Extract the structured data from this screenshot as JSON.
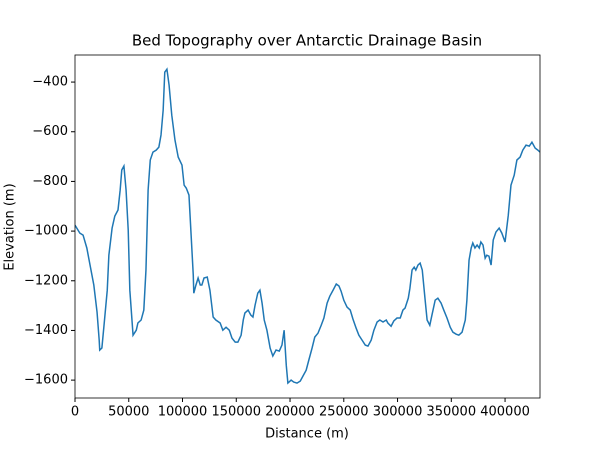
{
  "chart_data": {
    "type": "line",
    "title": "Bed Topography over Antarctic Drainage Basin",
    "x_label": "Distance (m)",
    "y_label": "Elevation (m)",
    "xlim": [
      0,
      432500
    ],
    "ylim": [
      -1672,
      -291
    ],
    "xticks": [
      0,
      50000,
      100000,
      150000,
      200000,
      250000,
      300000,
      350000,
      400000
    ],
    "yticks": [
      {
        "value": -1600,
        "label": "−1600"
      },
      {
        "value": -1400,
        "label": "−1400"
      },
      {
        "value": -1200,
        "label": "−1200"
      },
      {
        "value": -1000,
        "label": "−1000"
      },
      {
        "value": -800,
        "label": "−800"
      },
      {
        "value": -600,
        "label": "−600"
      },
      {
        "value": -400,
        "label": "−400"
      }
    ],
    "color": "#1f77b4",
    "x": [
      0,
      4500,
      7500,
      11000,
      14000,
      17500,
      20500,
      22500,
      23000,
      25000,
      27000,
      30000,
      31500,
      34500,
      37000,
      40000,
      42000,
      43500,
      45500,
      47500,
      49500,
      51000,
      54000,
      57000,
      58500,
      61500,
      64000,
      66000,
      68000,
      70000,
      72500,
      75500,
      78000,
      80000,
      82000,
      83500,
      85500,
      87500,
      90000,
      93000,
      96000,
      99500,
      101500,
      103500,
      106000,
      108000,
      110000,
      110500,
      112500,
      114500,
      116500,
      118000,
      120000,
      123000,
      125500,
      128500,
      131000,
      135000,
      137500,
      140500,
      143500,
      146000,
      149000,
      151500,
      154500,
      156500,
      158000,
      161000,
      163500,
      165500,
      167500,
      170000,
      172000,
      174000,
      176000,
      178500,
      181500,
      184000,
      187000,
      190000,
      192500,
      194500,
      196500,
      198000,
      201000,
      203500,
      206500,
      209500,
      212000,
      215000,
      217500,
      220500,
      223000,
      226000,
      229000,
      231500,
      234500,
      237000,
      240000,
      243000,
      245500,
      247500,
      250000,
      253000,
      256000,
      258500,
      261500,
      264000,
      267000,
      270000,
      272500,
      275500,
      278000,
      281000,
      283500,
      286500,
      289500,
      291000,
      294000,
      296500,
      299500,
      302500,
      305000,
      307000,
      310000,
      311500,
      313500,
      315500,
      317000,
      319000,
      321000,
      323000,
      325500,
      327500,
      330000,
      332000,
      335000,
      337500,
      340500,
      343000,
      346000,
      349000,
      351500,
      354500,
      357000,
      360000,
      363000,
      364500,
      366500,
      368500,
      370000,
      372000,
      374000,
      376000,
      377500,
      379500,
      381500,
      383000,
      385000,
      387000,
      389000,
      391500,
      394500,
      397000,
      400000,
      403000,
      405500,
      408500,
      411000,
      414000,
      416500,
      419500,
      422500,
      425000,
      428000,
      430500,
      432500
    ],
    "values": [
      -976,
      -1008,
      -1016,
      -1068,
      -1137,
      -1217,
      -1326,
      -1439,
      -1479,
      -1471,
      -1379,
      -1238,
      -1097,
      -988,
      -940,
      -915,
      -835,
      -754,
      -738,
      -835,
      -996,
      -1238,
      -1419,
      -1399,
      -1370,
      -1358,
      -1318,
      -1157,
      -835,
      -714,
      -682,
      -674,
      -662,
      -613,
      -513,
      -360,
      -348,
      -412,
      -533,
      -634,
      -702,
      -734,
      -815,
      -827,
      -855,
      -1016,
      -1177,
      -1250,
      -1217,
      -1189,
      -1217,
      -1217,
      -1189,
      -1185,
      -1238,
      -1346,
      -1358,
      -1370,
      -1399,
      -1387,
      -1399,
      -1431,
      -1447,
      -1447,
      -1419,
      -1358,
      -1330,
      -1318,
      -1338,
      -1346,
      -1298,
      -1250,
      -1238,
      -1290,
      -1358,
      -1399,
      -1471,
      -1503,
      -1479,
      -1483,
      -1459,
      -1399,
      -1540,
      -1612,
      -1600,
      -1608,
      -1612,
      -1604,
      -1584,
      -1560,
      -1519,
      -1471,
      -1427,
      -1411,
      -1379,
      -1350,
      -1290,
      -1262,
      -1238,
      -1213,
      -1221,
      -1242,
      -1278,
      -1306,
      -1318,
      -1354,
      -1391,
      -1419,
      -1439,
      -1459,
      -1463,
      -1439,
      -1399,
      -1366,
      -1358,
      -1366,
      -1358,
      -1370,
      -1383,
      -1362,
      -1350,
      -1350,
      -1318,
      -1310,
      -1270,
      -1230,
      -1157,
      -1145,
      -1157,
      -1137,
      -1129,
      -1157,
      -1270,
      -1358,
      -1379,
      -1338,
      -1278,
      -1270,
      -1290,
      -1318,
      -1350,
      -1387,
      -1407,
      -1415,
      -1419,
      -1407,
      -1358,
      -1278,
      -1117,
      -1068,
      -1048,
      -1068,
      -1056,
      -1068,
      -1044,
      -1056,
      -1109,
      -1097,
      -1101,
      -1137,
      -1036,
      -1004,
      -988,
      -1008,
      -1044,
      -936,
      -815,
      -775,
      -714,
      -702,
      -674,
      -654,
      -658,
      -642,
      -666,
      -674,
      -682
    ]
  }
}
